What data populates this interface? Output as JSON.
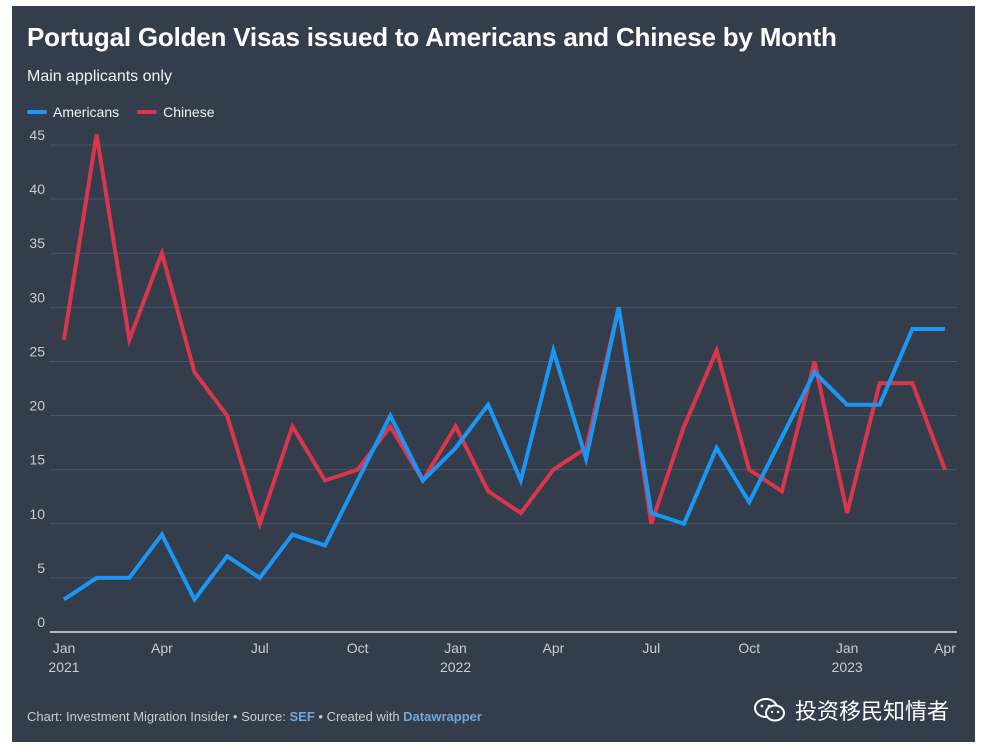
{
  "header": {
    "title": "Portugal Golden Visas issued to Americans and Chinese by Month",
    "subtitle": "Main applicants only"
  },
  "legend": [
    {
      "label": "Americans",
      "color": "#1a97f5"
    },
    {
      "label": "Chinese",
      "color": "#d9364b"
    }
  ],
  "footer": {
    "prefix": "Chart: Investment Migration Insider • Source: ",
    "source": "SEF",
    "middle": " • Created with ",
    "tool": "Datawrapper"
  },
  "watermark": {
    "text": "投资移民知情者",
    "icon": "wechat-icon"
  },
  "chart_data": {
    "type": "line",
    "x": [
      "2021-01",
      "2021-02",
      "2021-03",
      "2021-04",
      "2021-05",
      "2021-06",
      "2021-07",
      "2021-08",
      "2021-09",
      "2021-10",
      "2021-11",
      "2021-12",
      "2022-01",
      "2022-02",
      "2022-03",
      "2022-04",
      "2022-05",
      "2022-06",
      "2022-07",
      "2022-08",
      "2022-09",
      "2022-10",
      "2022-11",
      "2022-12",
      "2023-01",
      "2023-02",
      "2023-03",
      "2023-04"
    ],
    "x_ticks": [
      {
        "label": "Jan",
        "sub": "2021",
        "index": 0
      },
      {
        "label": "Apr",
        "sub": "",
        "index": 3
      },
      {
        "label": "Jul",
        "sub": "",
        "index": 6
      },
      {
        "label": "Oct",
        "sub": "",
        "index": 9
      },
      {
        "label": "Jan",
        "sub": "2022",
        "index": 12
      },
      {
        "label": "Apr",
        "sub": "",
        "index": 15
      },
      {
        "label": "Jul",
        "sub": "",
        "index": 18
      },
      {
        "label": "Oct",
        "sub": "",
        "index": 21
      },
      {
        "label": "Jan",
        "sub": "2023",
        "index": 24
      },
      {
        "label": "Apr",
        "sub": "",
        "index": 27
      }
    ],
    "y_ticks": [
      0,
      5,
      10,
      15,
      20,
      25,
      30,
      35,
      40,
      45
    ],
    "ylim": [
      0,
      45
    ],
    "grid": true,
    "legend_position": "top-left",
    "series": [
      {
        "name": "Americans",
        "color": "#1a97f5",
        "values": [
          3,
          5,
          5,
          9,
          3,
          7,
          5,
          9,
          8,
          14,
          20,
          14,
          17,
          21,
          14,
          26,
          16,
          30,
          11,
          10,
          17,
          12,
          18,
          24,
          21,
          21,
          28,
          28
        ]
      },
      {
        "name": "Chinese",
        "color": "#d9364b",
        "values": [
          27,
          46,
          27,
          35,
          24,
          20,
          10,
          19,
          14,
          15,
          19,
          14,
          19,
          13,
          11,
          15,
          17,
          30,
          10,
          19,
          26,
          15,
          13,
          25,
          11,
          23,
          23,
          15
        ]
      }
    ]
  }
}
